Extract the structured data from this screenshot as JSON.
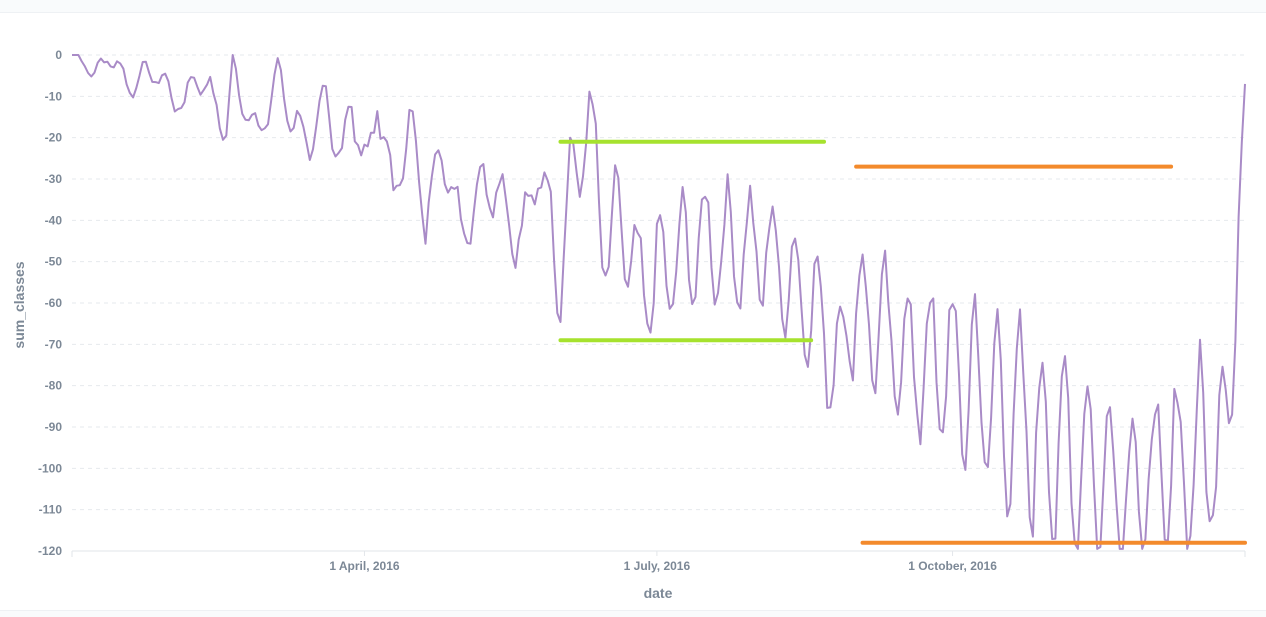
{
  "chart_data": {
    "type": "line",
    "xlabel": "date",
    "ylabel": "sum_classes",
    "x_range": [
      "2016-01-01",
      "2016-12-31"
    ],
    "ylim": [
      -120,
      0
    ],
    "y_ticks": [
      0,
      -10,
      -20,
      -30,
      -40,
      -50,
      -60,
      -70,
      -80,
      -90,
      -100,
      -110,
      -120
    ],
    "x_ticks": [
      {
        "date": "2016-04-01",
        "label": "1 April, 2016"
      },
      {
        "date": "2016-07-01",
        "label": "1 July, 2016"
      },
      {
        "date": "2016-10-01",
        "label": "1 October, 2016"
      }
    ],
    "grid": "horizontal",
    "colors": {
      "series": "#a98bc7",
      "annotation_green": "#a6e22e",
      "annotation_orange": "#f38a2c"
    },
    "anchor_points": [
      [
        "2016-01-01",
        0
      ],
      [
        "2016-01-05",
        -1
      ],
      [
        "2016-01-08",
        -6
      ],
      [
        "2016-01-10",
        -2
      ],
      [
        "2016-01-12",
        0
      ],
      [
        "2016-01-20",
        -8
      ],
      [
        "2016-01-25",
        -3
      ],
      [
        "2016-02-05",
        -13
      ],
      [
        "2016-02-08",
        -4
      ],
      [
        "2016-02-15",
        -12
      ],
      [
        "2016-02-18",
        -19
      ],
      [
        "2016-02-20",
        -4
      ],
      [
        "2016-02-28",
        -20
      ],
      [
        "2016-03-05",
        -5
      ],
      [
        "2016-03-10",
        -16
      ],
      [
        "2016-03-15",
        -22
      ],
      [
        "2016-03-20",
        -11
      ],
      [
        "2016-03-25",
        -25
      ],
      [
        "2016-03-28",
        -12
      ],
      [
        "2016-04-02",
        -28
      ],
      [
        "2016-04-05",
        -10
      ],
      [
        "2016-04-10",
        -35
      ],
      [
        "2016-04-15",
        -16
      ],
      [
        "2016-04-20",
        -39
      ],
      [
        "2016-04-25",
        -22
      ],
      [
        "2016-05-01",
        -42
      ],
      [
        "2016-05-10",
        -29
      ],
      [
        "2016-05-20",
        -46
      ],
      [
        "2016-05-25",
        -26
      ],
      [
        "2016-06-01",
        -50
      ],
      [
        "2016-06-06",
        -24
      ],
      [
        "2016-06-10",
        -17
      ],
      [
        "2016-06-16",
        -50
      ],
      [
        "2016-06-20",
        -38
      ],
      [
        "2016-06-25",
        -57
      ],
      [
        "2016-07-15",
        -45
      ],
      [
        "2016-08-05",
        -48
      ],
      [
        "2016-08-15",
        -58
      ],
      [
        "2016-08-20",
        -62
      ],
      [
        "2016-08-25",
        -75
      ],
      [
        "2016-09-01",
        -60
      ],
      [
        "2016-09-10",
        -68
      ],
      [
        "2016-09-20",
        -75
      ],
      [
        "2016-09-30",
        -76
      ],
      [
        "2016-10-10",
        -82
      ],
      [
        "2016-10-20",
        -88
      ],
      [
        "2016-11-01",
        -95
      ],
      [
        "2016-11-15",
        -100
      ],
      [
        "2016-11-25",
        -105
      ],
      [
        "2016-12-05",
        -102
      ],
      [
        "2016-12-15",
        -98
      ],
      [
        "2016-12-25",
        -92
      ],
      [
        "2016-12-31",
        -7
      ]
    ],
    "annotations": [
      {
        "color": "#a6e22e",
        "y": -21,
        "x_start": "2016-06-01",
        "x_end": "2016-08-22"
      },
      {
        "color": "#a6e22e",
        "y": -69,
        "x_start": "2016-06-01",
        "x_end": "2016-08-18"
      },
      {
        "color": "#f38a2c",
        "y": -27,
        "x_start": "2016-09-01",
        "x_end": "2016-12-08"
      },
      {
        "color": "#f38a2c",
        "y": -118,
        "x_start": "2016-09-03",
        "x_end": "2016-12-31"
      }
    ]
  }
}
